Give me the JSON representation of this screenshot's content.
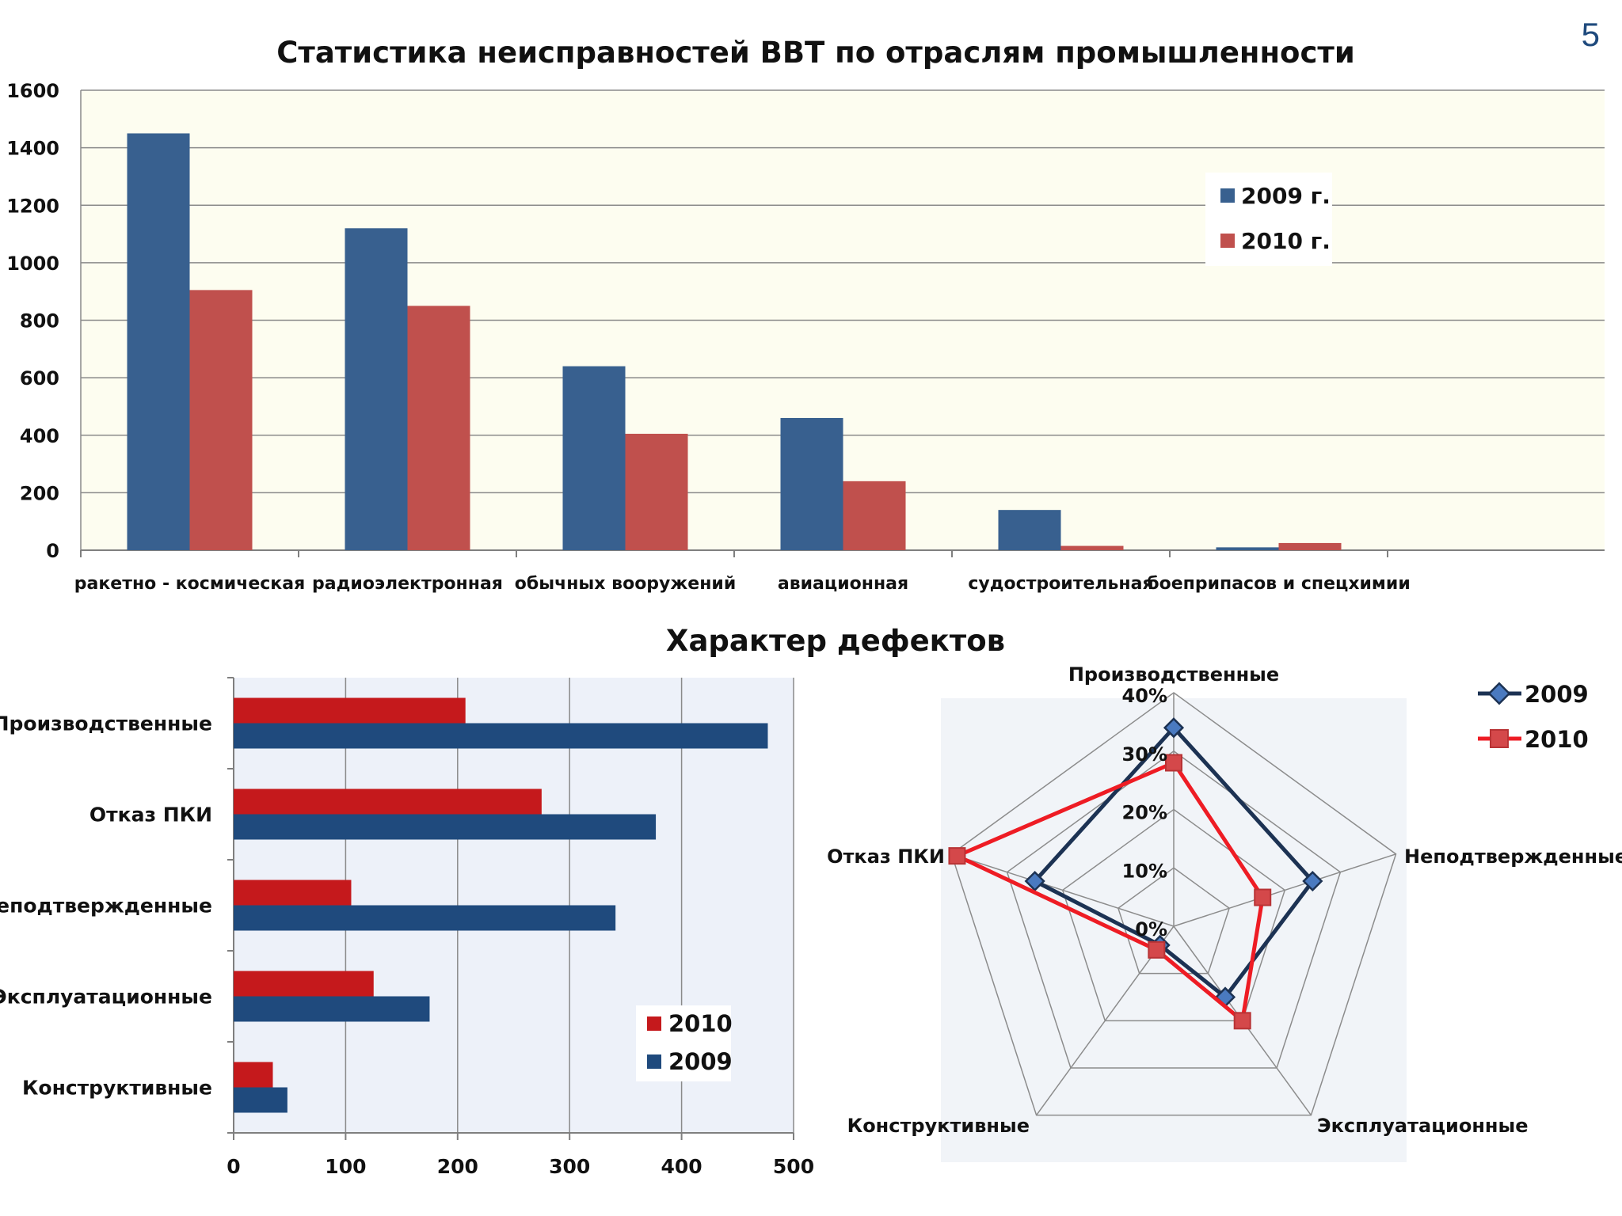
{
  "page_number": "5",
  "chart_data": [
    {
      "type": "bar",
      "title": "Статистика неисправностей ВВТ по отраслям промышленности",
      "categories": [
        "ракетно - космическая",
        "радиоэлектронная",
        "обычных вооружений",
        "авиационная",
        "судостроительная",
        "боеприпасов и спецхимии"
      ],
      "series": [
        {
          "name": "2009 г.",
          "values": [
            1450,
            1120,
            640,
            460,
            140,
            10
          ],
          "color": "#38608f"
        },
        {
          "name": "2010 г.",
          "values": [
            905,
            850,
            405,
            240,
            15,
            25
          ],
          "color": "#c0504d"
        }
      ],
      "ylim": [
        0,
        1600
      ],
      "yticks": [
        "0",
        "200",
        "400",
        "600",
        "800",
        "1000",
        "1200",
        "1400",
        "1600"
      ],
      "grid": true,
      "legend": "right"
    },
    {
      "type": "bar",
      "orientation": "horizontal",
      "title": "Характер дефектов",
      "categories": [
        "Производственные",
        "Отказ  ПКИ",
        "Неподтвержденные",
        "Эксплуатационные",
        "Конструктивные"
      ],
      "series": [
        {
          "name": "2010",
          "values": [
            207,
            275,
            105,
            125,
            35
          ],
          "color": "#c5191c"
        },
        {
          "name": "2009",
          "values": [
            477,
            377,
            341,
            175,
            48
          ],
          "color": "#1f4a7d"
        }
      ],
      "xlim": [
        0,
        500
      ],
      "xticks": [
        "0",
        "100",
        "200",
        "300",
        "400",
        "500"
      ],
      "grid": true,
      "legend": "bottom-right"
    },
    {
      "type": "radar",
      "categories": [
        "Производственные",
        "Неподтвержденные",
        "Эксплуатационные",
        "Конструктивные",
        "Отказ ПКИ"
      ],
      "series": [
        {
          "name": "2009",
          "values": [
            34,
            25,
            15,
            4,
            25
          ],
          "color": "#1c3253",
          "marker_color": "#4a7ac0"
        },
        {
          "name": "2010",
          "values": [
            28,
            16,
            20,
            5,
            39
          ],
          "color": "#ee1c24",
          "marker_color": "#d4484a"
        }
      ],
      "rlim": [
        0,
        40
      ],
      "rticks": [
        "0%",
        "10%",
        "20%",
        "30%",
        "40%"
      ],
      "legend": "top-right"
    }
  ]
}
